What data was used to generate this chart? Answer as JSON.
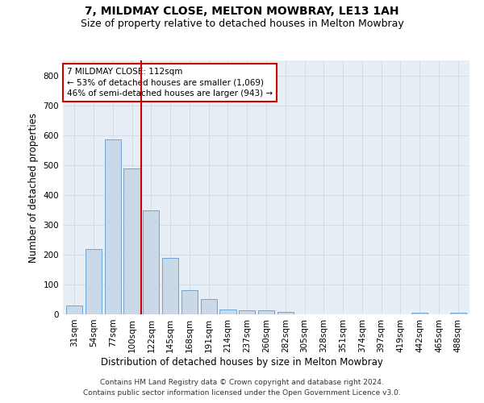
{
  "title": "7, MILDMAY CLOSE, MELTON MOWBRAY, LE13 1AH",
  "subtitle": "Size of property relative to detached houses in Melton Mowbray",
  "xlabel": "Distribution of detached houses by size in Melton Mowbray",
  "ylabel": "Number of detached properties",
  "categories": [
    "31sqm",
    "54sqm",
    "77sqm",
    "100sqm",
    "122sqm",
    "145sqm",
    "168sqm",
    "191sqm",
    "214sqm",
    "237sqm",
    "260sqm",
    "282sqm",
    "305sqm",
    "328sqm",
    "351sqm",
    "374sqm",
    "397sqm",
    "419sqm",
    "442sqm",
    "465sqm",
    "488sqm"
  ],
  "values": [
    30,
    218,
    585,
    488,
    348,
    188,
    82,
    52,
    17,
    13,
    13,
    7,
    0,
    0,
    0,
    0,
    0,
    0,
    5,
    0,
    5
  ],
  "bar_color": "#c9d9e8",
  "bar_edge_color": "#5b9bd5",
  "vline_x": 3.5,
  "vline_color": "#cc0000",
  "annotation_text": "7 MILDMAY CLOSE: 112sqm\n← 53% of detached houses are smaller (1,069)\n46% of semi-detached houses are larger (943) →",
  "annotation_box_color": "#ffffff",
  "annotation_box_edge": "#cc0000",
  "ylim": [
    0,
    850
  ],
  "yticks": [
    0,
    100,
    200,
    300,
    400,
    500,
    600,
    700,
    800
  ],
  "title_fontsize": 10,
  "subtitle_fontsize": 9,
  "xlabel_fontsize": 8.5,
  "ylabel_fontsize": 8.5,
  "tick_fontsize": 7.5,
  "annotation_fontsize": 7.5,
  "footer_line1": "Contains HM Land Registry data © Crown copyright and database right 2024.",
  "footer_line2": "Contains public sector information licensed under the Open Government Licence v3.0.",
  "background_color": "#ffffff",
  "grid_color": "#ccd6e0",
  "axes_bg_color": "#e8eef5"
}
